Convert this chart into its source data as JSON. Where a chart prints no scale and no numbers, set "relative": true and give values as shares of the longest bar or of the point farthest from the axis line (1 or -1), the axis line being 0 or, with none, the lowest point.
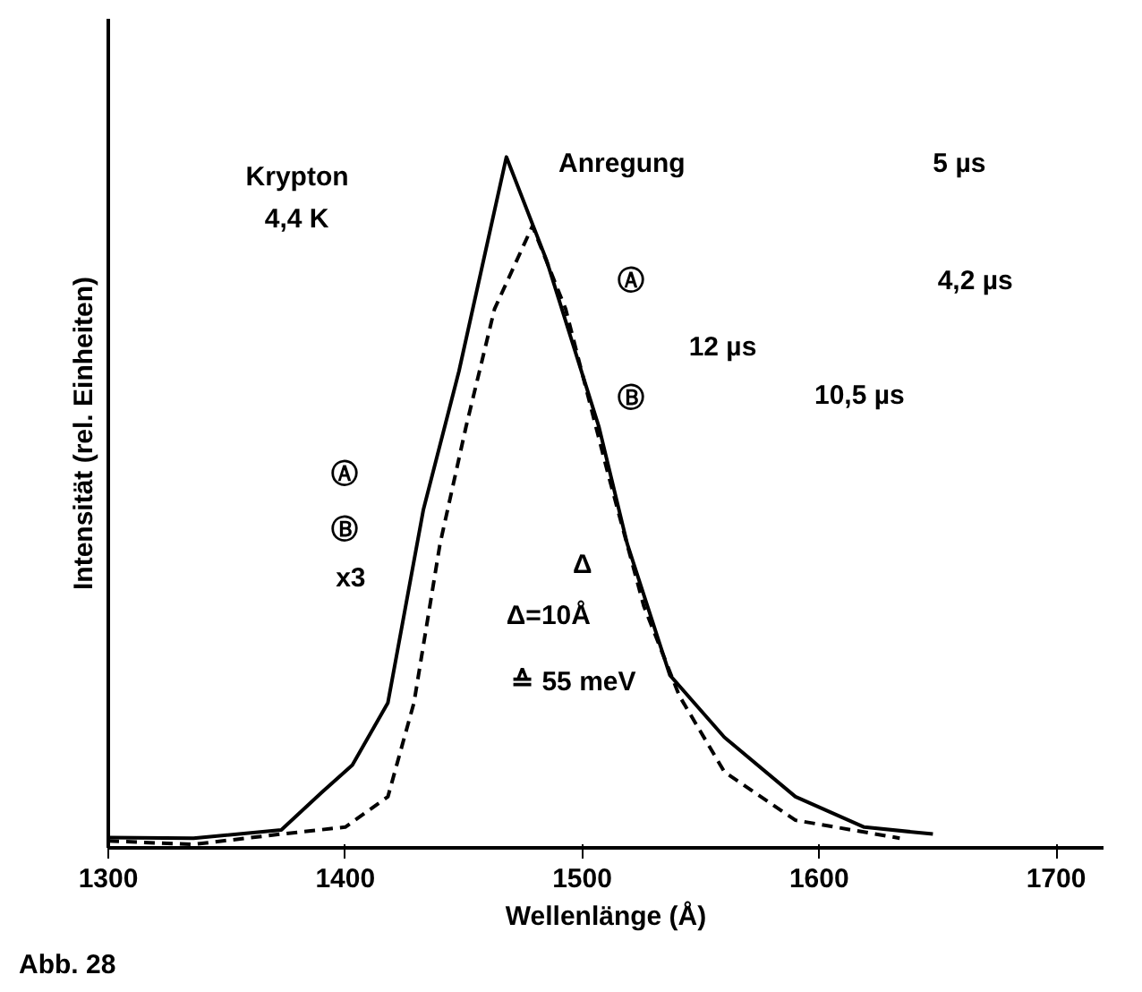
{
  "chart_data": {
    "type": "line",
    "relative": true,
    "xlabel": "Wellenlänge (Å)",
    "ylabel": "Intensität (rel. Einheiten)",
    "xlim": [
      1300,
      1720
    ],
    "xticks": [
      1300,
      1400,
      1500,
      1600,
      1700
    ],
    "grid": false,
    "marker": "none",
    "series": [
      {
        "color": "#000000",
        "line_style": "solid",
        "x": [
          1300,
          1336,
          1373,
          1390,
          1403,
          1418,
          1433,
          1448,
          1468,
          1485,
          1507,
          1519,
          1537,
          1560,
          1590,
          1619,
          1648
        ],
        "values": [
          0.015,
          0.014,
          0.026,
          0.08,
          0.12,
          0.21,
          0.49,
          0.69,
          1.0,
          0.85,
          0.61,
          0.44,
          0.25,
          0.16,
          0.074,
          0.03,
          0.02
        ]
      },
      {
        "color": "#000000",
        "line_style": "dashed",
        "x": [
          1300,
          1336,
          1373,
          1400,
          1418,
          1429,
          1440,
          1451,
          1463,
          1479,
          1493,
          1511,
          1526,
          1541,
          1560,
          1590,
          1634
        ],
        "values": [
          0.01,
          0.005,
          0.02,
          0.03,
          0.074,
          0.21,
          0.44,
          0.61,
          0.78,
          0.9,
          0.78,
          0.54,
          0.35,
          0.22,
          0.11,
          0.04,
          0.014
        ]
      }
    ],
    "annotations": [
      "Krypton",
      "4,4 K",
      "Anregung",
      "5 µs",
      "Ⓐ",
      "4,2 µs",
      "12 µs",
      "Ⓑ",
      "10,5 µs",
      "Ⓐ",
      "Ⓑ",
      "x3",
      "Δ=10Å",
      "≙ 55 meV",
      "Δ",
      "Abb. 28"
    ]
  }
}
